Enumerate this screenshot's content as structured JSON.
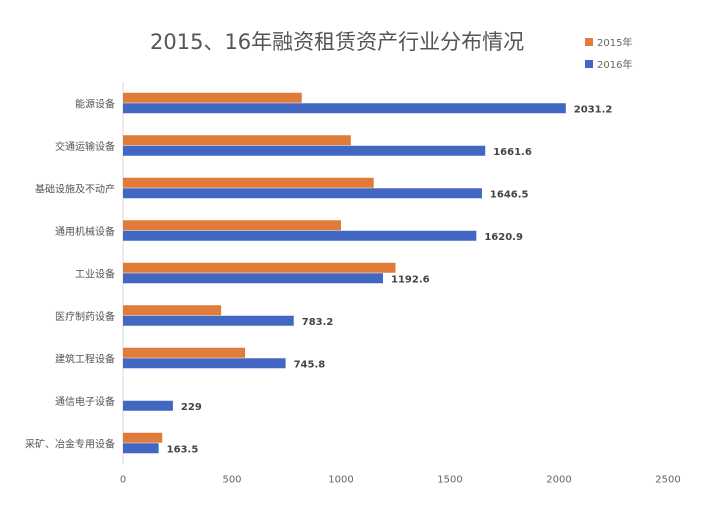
{
  "chart_data": {
    "type": "bar",
    "orientation": "horizontal",
    "title": "2015、16年融资租赁资产行业分布情况",
    "categories": [
      "能源设备",
      "交通运输设备",
      "基础设施及不动产",
      "通用机械设备",
      "工业设备",
      "医疗制药设备",
      "建筑工程设备",
      "通信电子设备",
      "采矿、冶金专用设备"
    ],
    "series": [
      {
        "name": "2015年",
        "color": "#E07B39",
        "values": [
          820,
          1045,
          1150,
          1000,
          1250,
          450,
          560,
          0,
          180
        ]
      },
      {
        "name": "2016年",
        "color": "#4267C3",
        "values": [
          2031.2,
          1661.6,
          1646.5,
          1620.9,
          1192.6,
          783.2,
          745.8,
          229,
          163.5
        ],
        "labels": [
          "2031.2",
          "1661.6",
          "1646.5",
          "1620.9",
          "1192.6",
          "783.2",
          "745.8",
          "229",
          "163.5"
        ]
      }
    ],
    "xlim": [
      0,
      2500
    ],
    "xticks": [
      "0",
      "500",
      "1000",
      "1500",
      "2000",
      "2500"
    ],
    "legend": "top-right",
    "grid": false
  }
}
